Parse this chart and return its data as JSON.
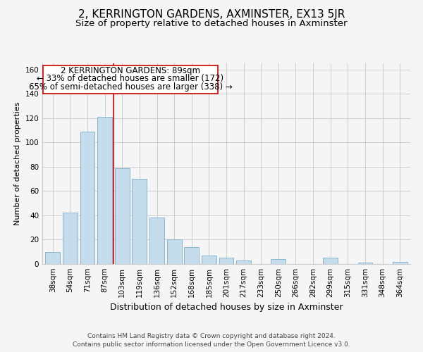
{
  "title": "2, KERRINGTON GARDENS, AXMINSTER, EX13 5JR",
  "subtitle": "Size of property relative to detached houses in Axminster",
  "xlabel": "Distribution of detached houses by size in Axminster",
  "ylabel": "Number of detached properties",
  "bar_labels": [
    "38sqm",
    "54sqm",
    "71sqm",
    "87sqm",
    "103sqm",
    "119sqm",
    "136sqm",
    "152sqm",
    "168sqm",
    "185sqm",
    "201sqm",
    "217sqm",
    "233sqm",
    "250sqm",
    "266sqm",
    "282sqm",
    "299sqm",
    "315sqm",
    "331sqm",
    "348sqm",
    "364sqm"
  ],
  "bar_values": [
    10,
    42,
    109,
    121,
    79,
    70,
    38,
    20,
    14,
    7,
    5,
    3,
    0,
    4,
    0,
    0,
    5,
    0,
    1,
    0,
    2
  ],
  "bar_color": "#c5dced",
  "bar_edge_color": "#8ab4cc",
  "annotation_line1": "2 KERRINGTON GARDENS: 89sqm",
  "annotation_line2": "← 33% of detached houses are smaller (172)",
  "annotation_line3": "65% of semi-detached houses are larger (338) →",
  "red_line_x": 3.5,
  "ylim": [
    0,
    165
  ],
  "yticks": [
    0,
    20,
    40,
    60,
    80,
    100,
    120,
    140,
    160
  ],
  "grid_color": "#cccccc",
  "background_color": "#f5f5f5",
  "footer_line1": "Contains HM Land Registry data © Crown copyright and database right 2024.",
  "footer_line2": "Contains public sector information licensed under the Open Government Licence v3.0.",
  "title_fontsize": 11,
  "subtitle_fontsize": 9.5,
  "xlabel_fontsize": 9,
  "ylabel_fontsize": 8,
  "tick_fontsize": 7.5,
  "annotation_fontsize": 8.5,
  "footer_fontsize": 6.5
}
